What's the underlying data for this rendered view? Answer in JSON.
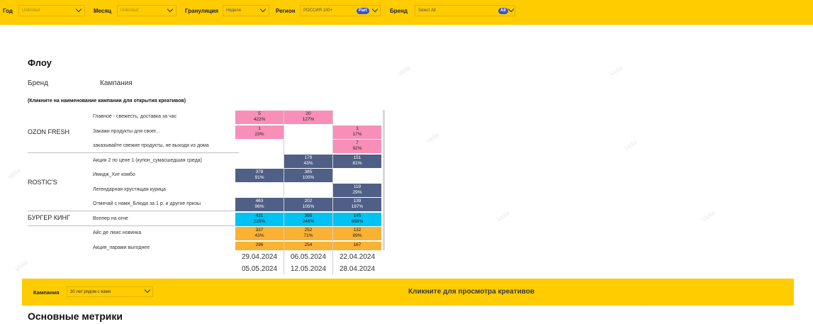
{
  "filters": [
    {
      "label": "Год",
      "value": "Unlimited"
    },
    {
      "label": "Месяц",
      "value": "Unlimited"
    },
    {
      "label": "Грануляция",
      "value": "Неделя"
    },
    {
      "label": "Регион",
      "value": "РОССИЯ 100+",
      "pill": "Part"
    },
    {
      "label": "Бренд",
      "value": "Select All",
      "pill": "All"
    }
  ],
  "flow": {
    "title": "Флоу",
    "col_brand": "Бренд",
    "col_campaign": "Кампания",
    "hint": "(Кликните на наименование кампании для открытия креативов)",
    "brands": [
      {
        "name": "OZON FRESH"
      },
      {
        "name": "ROSTIC'S"
      },
      {
        "name": "БУРГЕР КИНГ"
      }
    ],
    "campaigns": [
      "Главное - свежесть, доставка за час",
      "Закажи продукты для своег...",
      "заказывайте свежие продукты, не выходя из дома",
      "Акция 2 по цене 1 (купон_сумасшедшая среда)",
      "Имидж_Хит комбо",
      "Легендарная хрустящая курица",
      "Отмечай с нами_Блюда за 1 р. и другие призы",
      "Воппер на огне",
      "Айс де люкс новинка",
      "Акция_парами выгоднее"
    ],
    "rows": [
      [
        {
          "v": "5",
          "p": "422%"
        },
        {
          "v": "20",
          "p": "127%"
        },
        null
      ],
      [
        {
          "v": "1",
          "p": "23%"
        },
        null,
        {
          "v": "1",
          "p": "17%"
        }
      ],
      [
        null,
        null,
        {
          "v": "7",
          "p": "92%"
        }
      ],
      [
        null,
        {
          "v": "179",
          "p": "43%"
        },
        {
          "v": "151",
          "p": "81%"
        }
      ],
      [
        {
          "v": "378",
          "p": "91%"
        },
        {
          "v": "385",
          "p": "100%"
        },
        null
      ],
      [
        null,
        null,
        {
          "v": "119",
          "p": "29%"
        }
      ],
      [
        {
          "v": "463",
          "p": "96%"
        },
        {
          "v": "202",
          "p": "105%"
        },
        {
          "v": "139",
          "p": "197%"
        }
      ],
      [
        {
          "v": "431",
          "p": "225%"
        },
        {
          "v": "395",
          "p": "246%"
        },
        {
          "v": "145",
          "p": "668%"
        }
      ],
      [
        {
          "v": "337",
          "p": "43%"
        },
        {
          "v": "252",
          "p": "71%"
        },
        {
          "v": "132",
          "p": "89%"
        }
      ],
      [
        {
          "v": "296",
          "p": ""
        },
        {
          "v": "254",
          "p": ""
        },
        {
          "v": "167",
          "p": ""
        }
      ]
    ],
    "dates_start": [
      "29.04.2024",
      "06.05.2024",
      "22.04.2024"
    ],
    "dates_end": [
      "05.05.2024",
      "12.05.2024",
      "28.04.2024"
    ]
  },
  "colors": {
    "accent": "#ffcc00",
    "pink": "#f78fb8",
    "navy": "#4f5f86",
    "cyan": "#00c2f3",
    "orange": "#f9b233"
  },
  "band": {
    "campaign_label": "Кампания",
    "campaign_value": "30 лет рядом с вами",
    "cta": "Кликните для просмотра креативов"
  },
  "metrics_title": "Основные метрики"
}
